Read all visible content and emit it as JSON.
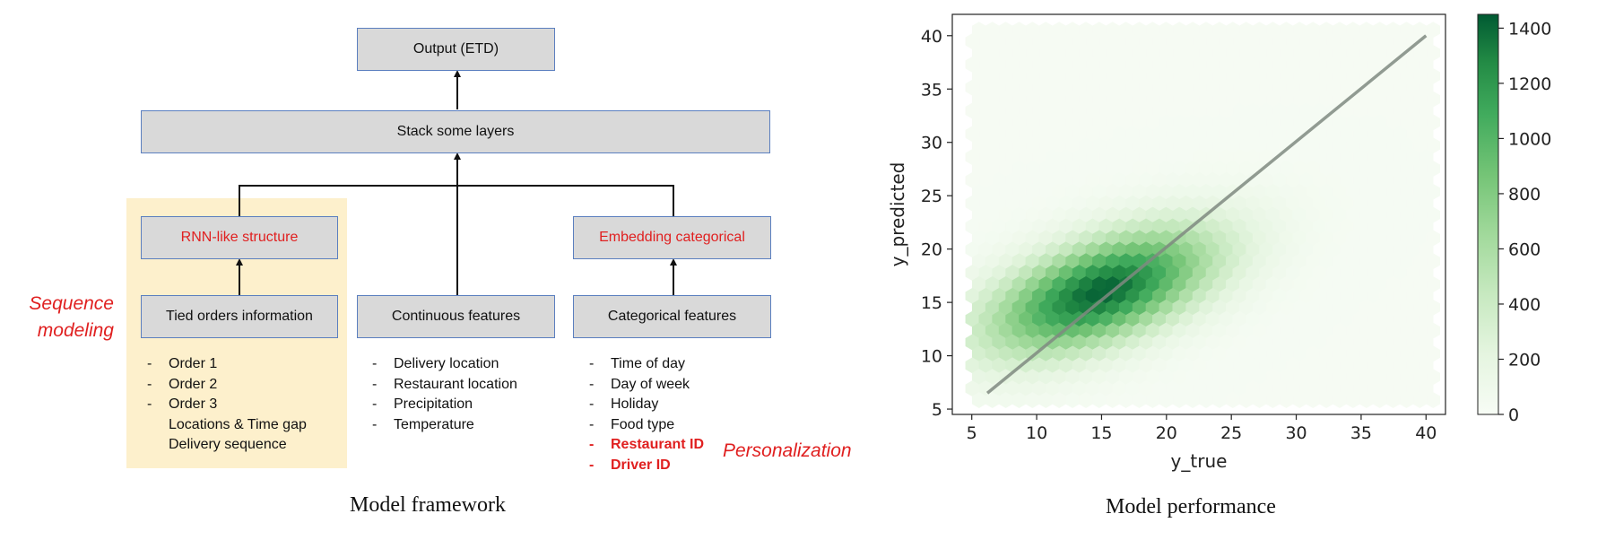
{
  "diagram": {
    "output_box": "Output (ETD)",
    "stack_box": "Stack some layers",
    "rnn_box": "RNN-like structure",
    "embed_box": "Embedding categorical",
    "tied_box": "Tied orders information",
    "cont_box": "Continuous features",
    "cat_box": "Categorical features",
    "sequence_note_line1": "Sequence",
    "sequence_note_line2": "modeling",
    "personalization_note": "Personalization",
    "tied_list": [
      "Order 1",
      "Order 2",
      "Order 3"
    ],
    "tied_list_cont": [
      "Locations & Time gap",
      "Delivery sequence"
    ],
    "cont_list": [
      "Delivery location",
      "Restaurant location",
      "Precipitation",
      "Temperature"
    ],
    "cat_list": [
      "Time of day",
      "Day of week",
      "Holiday",
      "Food type"
    ],
    "cat_list_highlight": [
      "Restaurant ID",
      "Driver ID"
    ],
    "dash": "-",
    "caption": "Model framework",
    "colors": {
      "box_fill": "#d9d9d9",
      "box_border": "#5b7fbf",
      "highlight": "#e02020",
      "sequence_bg": "#fdf0cc"
    }
  },
  "chart_data": {
    "type": "heatmap",
    "subtype": "hexbin",
    "title": "",
    "xlabel": "y_true",
    "ylabel": "y_predicted",
    "xlim": [
      3.5,
      41.5
    ],
    "ylim": [
      4.5,
      42
    ],
    "xticks": [
      5,
      10,
      15,
      20,
      25,
      30,
      35,
      40
    ],
    "yticks": [
      5,
      10,
      15,
      20,
      25,
      30,
      35,
      40
    ],
    "density_peak": {
      "x": 15,
      "y": 16,
      "count": 1400
    },
    "density_spread": {
      "sx": 6,
      "sy": 4,
      "corr": 0.55
    },
    "reference_line": {
      "x": [
        6.2,
        40
      ],
      "y": [
        6.5,
        40
      ],
      "color": "#7f8a80"
    },
    "colorbar": {
      "min": 0,
      "max": 1450,
      "ticks": [
        0,
        200,
        400,
        600,
        800,
        1000,
        1200,
        1400
      ],
      "colormap": "Greens"
    },
    "caption": "Model performance"
  }
}
